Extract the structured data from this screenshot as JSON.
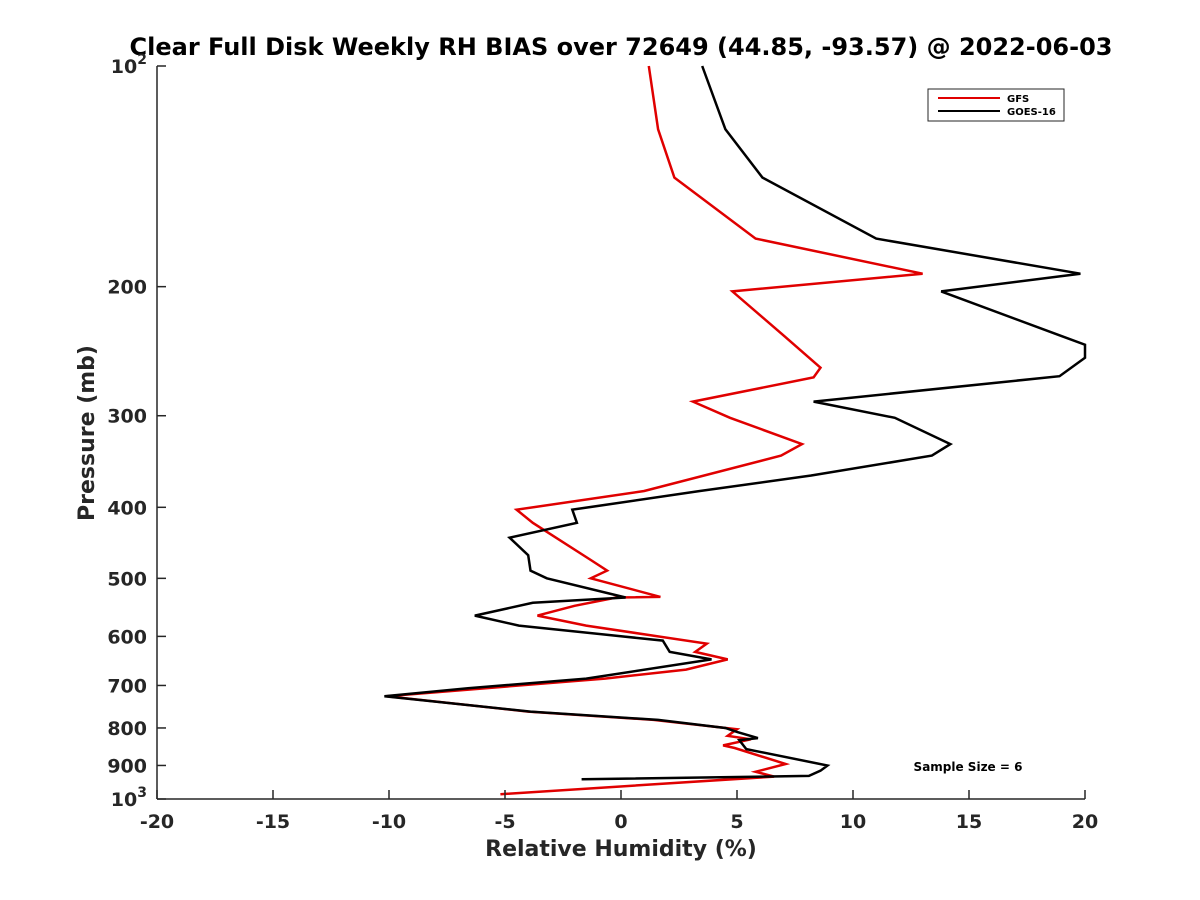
{
  "chart_data": {
    "type": "line",
    "title": "Clear Full Disk Weekly RH BIAS over 72649 (44.85, -93.57) @ 2022-06-03",
    "xlabel": "Relative Humidity (%)",
    "ylabel": "Pressure (mb)",
    "xlim": [
      -20,
      20
    ],
    "ylim": [
      100,
      1000
    ],
    "y_scale": "log",
    "y_reversed": true,
    "grid": false,
    "legend_position": "top-right",
    "x_ticks": [
      -20,
      -15,
      -10,
      -5,
      0,
      5,
      10,
      15,
      20
    ],
    "y_ticks": [
      {
        "value": 100,
        "label": "10",
        "sup": "2"
      },
      {
        "value": 200,
        "label": "200",
        "sup": ""
      },
      {
        "value": 300,
        "label": "300",
        "sup": ""
      },
      {
        "value": 400,
        "label": "400",
        "sup": ""
      },
      {
        "value": 500,
        "label": "500",
        "sup": ""
      },
      {
        "value": 600,
        "label": "600",
        "sup": ""
      },
      {
        "value": 700,
        "label": "700",
        "sup": ""
      },
      {
        "value": 800,
        "label": "800",
        "sup": ""
      },
      {
        "value": 900,
        "label": "900",
        "sup": ""
      },
      {
        "value": 1000,
        "label": "10",
        "sup": "3"
      }
    ],
    "annotation": "Sample Size = 6",
    "series": [
      {
        "name": "GFS",
        "color": "#e00000",
        "points": [
          [
            1.2,
            100
          ],
          [
            1.6,
            122
          ],
          [
            2.3,
            142
          ],
          [
            5.8,
            172
          ],
          [
            13.0,
            192
          ],
          [
            4.8,
            203
          ],
          [
            7.0,
            233
          ],
          [
            8.6,
            258
          ],
          [
            8.3,
            266
          ],
          [
            3.1,
            287
          ],
          [
            4.7,
            302
          ],
          [
            7.8,
            328
          ],
          [
            6.9,
            340
          ],
          [
            1.0,
            380
          ],
          [
            -4.5,
            403
          ],
          [
            -3.8,
            420
          ],
          [
            -1.3,
            472
          ],
          [
            -0.6,
            488
          ],
          [
            -1.3,
            500
          ],
          [
            1.7,
            530
          ],
          [
            -0.2,
            531
          ],
          [
            -2.0,
            545
          ],
          [
            -3.6,
            562
          ],
          [
            -1.5,
            580
          ],
          [
            3.7,
            614
          ],
          [
            3.2,
            630
          ],
          [
            4.6,
            645
          ],
          [
            2.8,
            666
          ],
          [
            -0.7,
            685
          ],
          [
            -10.1,
            724
          ],
          [
            -4.0,
            760
          ],
          [
            1.4,
            780
          ],
          [
            5.0,
            803
          ],
          [
            4.6,
            820
          ],
          [
            5.6,
            829
          ],
          [
            4.4,
            845
          ],
          [
            4.9,
            852
          ],
          [
            7.1,
            896
          ],
          [
            5.8,
            918
          ],
          [
            6.6,
            932
          ],
          [
            -5.2,
            985
          ]
        ]
      },
      {
        "name": "GOES-16",
        "color": "#000000",
        "points": [
          [
            3.5,
            100
          ],
          [
            4.5,
            122
          ],
          [
            6.1,
            142
          ],
          [
            11.0,
            172
          ],
          [
            19.8,
            192
          ],
          [
            13.8,
            203
          ],
          [
            18.9,
            233
          ],
          [
            20.0,
            240
          ],
          [
            20.0,
            250
          ],
          [
            18.9,
            265
          ],
          [
            8.3,
            287
          ],
          [
            11.8,
            302
          ],
          [
            14.2,
            328
          ],
          [
            13.4,
            340
          ],
          [
            8.2,
            362
          ],
          [
            3.4,
            380
          ],
          [
            -2.1,
            403
          ],
          [
            -1.9,
            420
          ],
          [
            -4.8,
            440
          ],
          [
            -4.0,
            465
          ],
          [
            -3.9,
            488
          ],
          [
            -3.2,
            500
          ],
          [
            0.2,
            531
          ],
          [
            -3.8,
            540
          ],
          [
            -6.3,
            562
          ],
          [
            -4.4,
            580
          ],
          [
            1.8,
            608
          ],
          [
            2.1,
            630
          ],
          [
            3.9,
            645
          ],
          [
            -1.5,
            685
          ],
          [
            -6.6,
            706
          ],
          [
            -10.2,
            724
          ],
          [
            -3.9,
            760
          ],
          [
            1.6,
            780
          ],
          [
            4.5,
            800
          ],
          [
            5.0,
            810
          ],
          [
            5.9,
            826
          ],
          [
            5.1,
            831
          ],
          [
            5.4,
            855
          ],
          [
            8.9,
            900
          ],
          [
            8.6,
            915
          ],
          [
            8.1,
            930
          ],
          [
            -1.7,
            940
          ]
        ]
      }
    ]
  }
}
